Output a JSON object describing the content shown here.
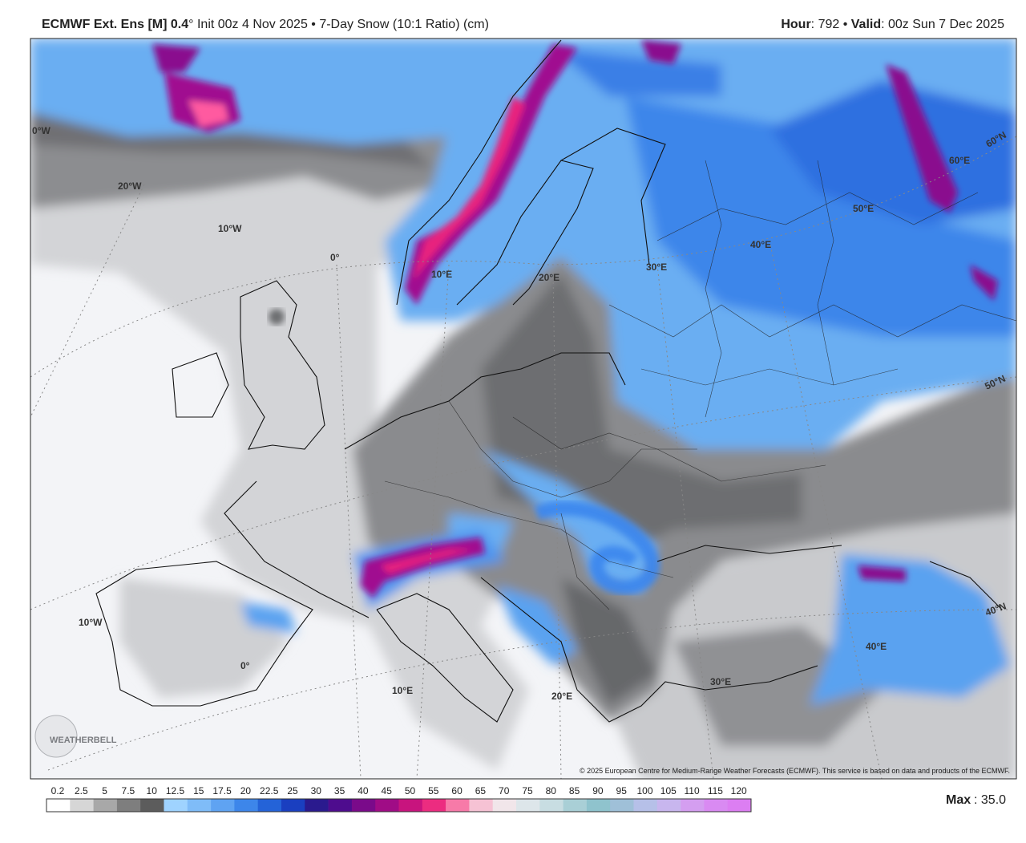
{
  "header": {
    "model": "ECMWF Ext. Ens [M] 0.4",
    "details": "° Init 00z 4 Nov 2025 • 7-Day Snow (10:1 Ratio) (cm)",
    "hour_label": "Hour",
    "hour_value": ": 792 • ",
    "valid_label": "Valid",
    "valid_value": ": 00z Sun 7 Dec 2025"
  },
  "map": {
    "grid_labels": [
      "0°W",
      "20°W",
      "10°W",
      "0°",
      "10°E",
      "20°E",
      "30°E",
      "40°E",
      "50°E",
      "60°E",
      "60°N",
      "50°N",
      "40°N",
      "10°W",
      "0°",
      "10°E",
      "20°E",
      "30°E",
      "40°E"
    ],
    "logo": "WEATHERBELL",
    "copyright": "© 2025 European Centre for Medium-Range Weather Forecasts (ECMWF). This service is based on data and products of the ECMWF."
  },
  "legend": {
    "ticks": [
      "0.2",
      "2.5",
      "5",
      "7.5",
      "10",
      "12.5",
      "15",
      "17.5",
      "20",
      "22.5",
      "25",
      "30",
      "35",
      "40",
      "45",
      "50",
      "55",
      "60",
      "65",
      "70",
      "75",
      "80",
      "85",
      "90",
      "95",
      "100",
      "105",
      "110",
      "115",
      "120"
    ],
    "max_label": "Max",
    "max_value": ": 35.0"
  }
}
